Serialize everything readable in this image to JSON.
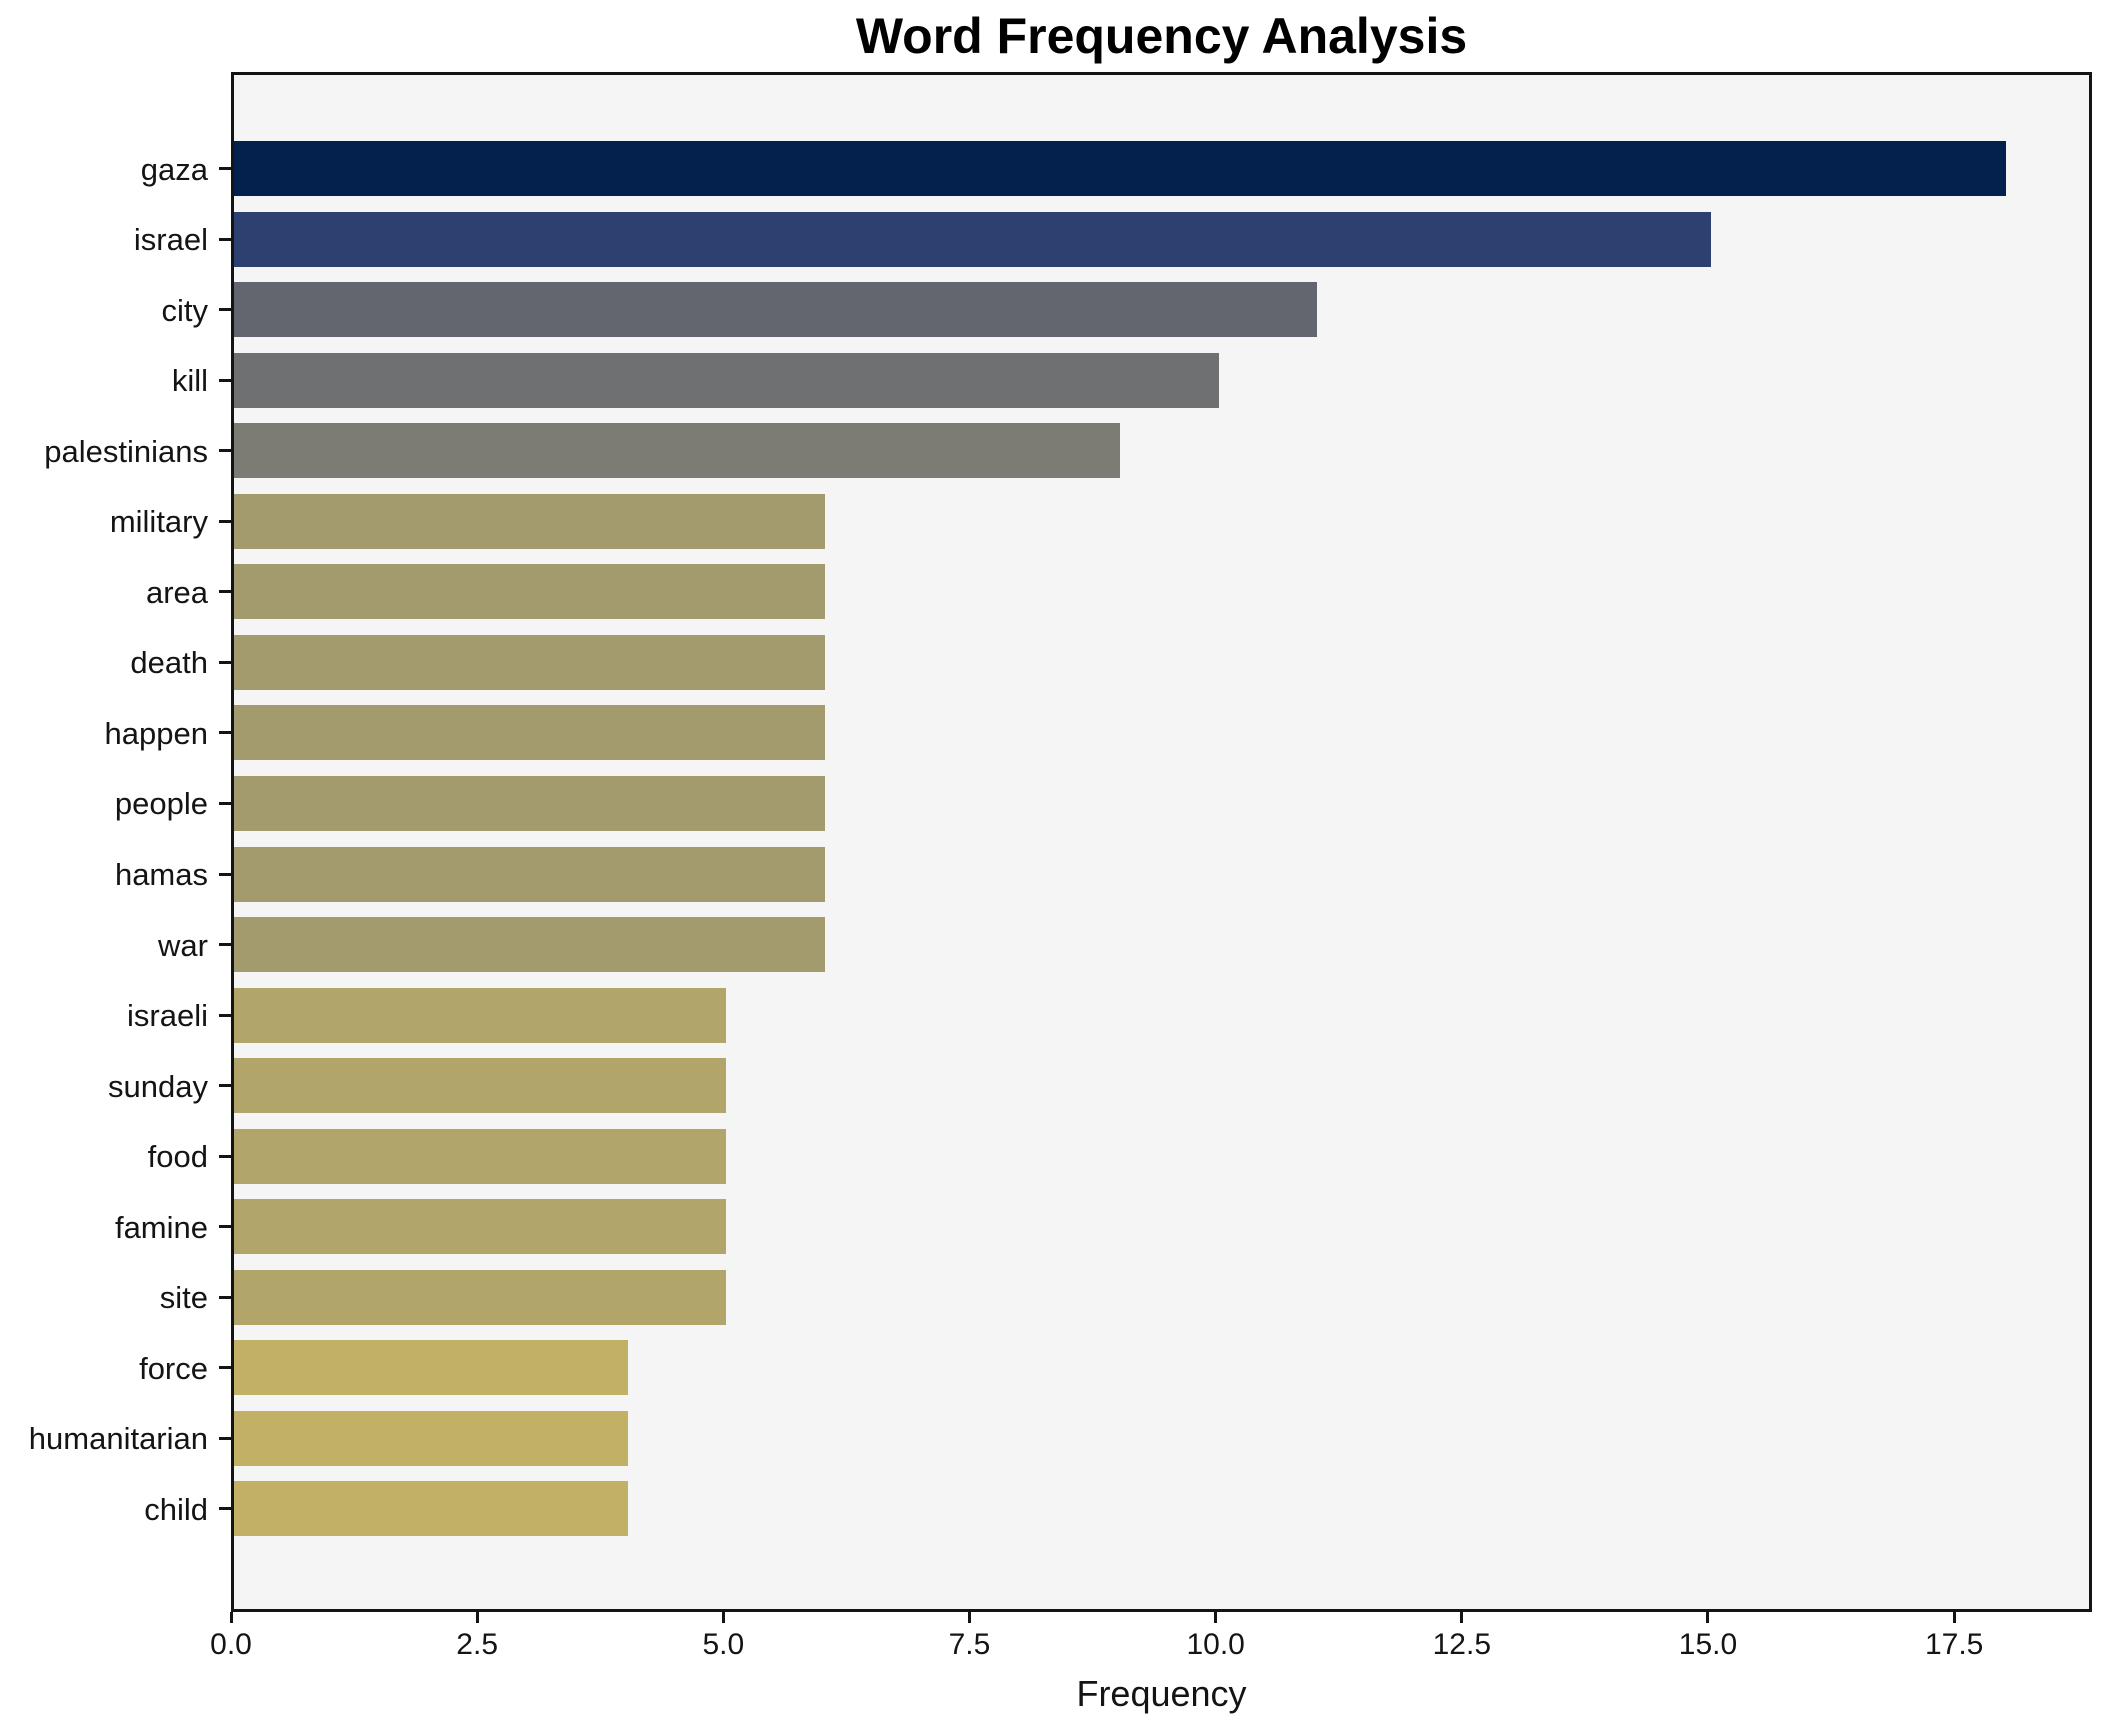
{
  "chart_data": {
    "type": "bar",
    "orientation": "horizontal",
    "title": "Word Frequency Analysis",
    "xlabel": "Frequency",
    "ylabel": "",
    "categories": [
      "gaza",
      "israel",
      "city",
      "kill",
      "palestinians",
      "military",
      "area",
      "death",
      "happen",
      "people",
      "hamas",
      "war",
      "israeli",
      "sunday",
      "food",
      "famine",
      "site",
      "force",
      "humanitarian",
      "child"
    ],
    "values": [
      18,
      15,
      11,
      10,
      9,
      6,
      6,
      6,
      6,
      6,
      6,
      6,
      5,
      5,
      5,
      5,
      5,
      4,
      4,
      4
    ],
    "bar_colors": [
      "#04214d",
      "#2d4170",
      "#64666f",
      "#6f7071",
      "#7c7c74",
      "#a39a6e",
      "#a39a6e",
      "#a39a6e",
      "#a39a6e",
      "#a39a6e",
      "#a39a6e",
      "#a39a6e",
      "#b2a569",
      "#b2a569",
      "#b2a569",
      "#b2a569",
      "#b2a569",
      "#c2b164",
      "#c2b164",
      "#c2b164"
    ],
    "xlim": [
      0,
      18.9
    ],
    "x_ticks": [
      0.0,
      2.5,
      5.0,
      7.5,
      10.0,
      12.5,
      15.0,
      17.5
    ],
    "x_tick_labels": [
      "0.0",
      "2.5",
      "5.0",
      "7.5",
      "10.0",
      "12.5",
      "15.0",
      "17.5"
    ],
    "grid": false,
    "legend": null,
    "colors": {
      "plot_background": "#f5f5f6",
      "figure_background": "#ffffff",
      "spine": "#141414",
      "text": "#141414",
      "title_text": "#000000"
    }
  }
}
